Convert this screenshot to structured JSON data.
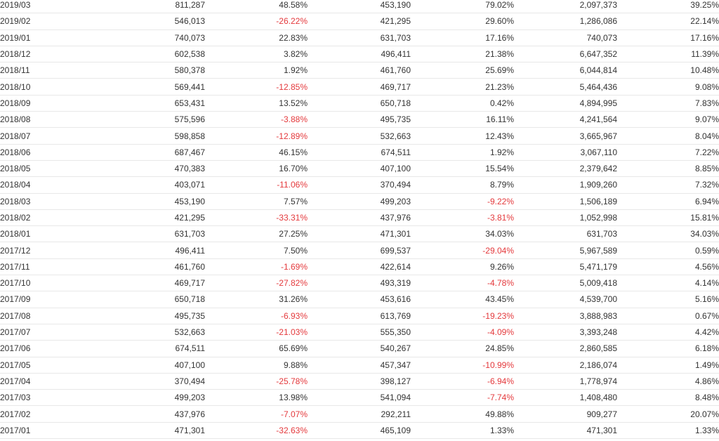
{
  "rows": [
    {
      "period": "2019/03",
      "v1": "811,287",
      "p1": "48.58%",
      "v2": "453,190",
      "p2": "79.02%",
      "v3": "2,097,373",
      "p3": "39.25%"
    },
    {
      "period": "2019/02",
      "v1": "546,013",
      "p1": "-26.22%",
      "v2": "421,295",
      "p2": "29.60%",
      "v3": "1,286,086",
      "p3": "22.14%"
    },
    {
      "period": "2019/01",
      "v1": "740,073",
      "p1": "22.83%",
      "v2": "631,703",
      "p2": "17.16%",
      "v3": "740,073",
      "p3": "17.16%"
    },
    {
      "period": "2018/12",
      "v1": "602,538",
      "p1": "3.82%",
      "v2": "496,411",
      "p2": "21.38%",
      "v3": "6,647,352",
      "p3": "11.39%"
    },
    {
      "period": "2018/11",
      "v1": "580,378",
      "p1": "1.92%",
      "v2": "461,760",
      "p2": "25.69%",
      "v3": "6,044,814",
      "p3": "10.48%"
    },
    {
      "period": "2018/10",
      "v1": "569,441",
      "p1": "-12.85%",
      "v2": "469,717",
      "p2": "21.23%",
      "v3": "5,464,436",
      "p3": "9.08%"
    },
    {
      "period": "2018/09",
      "v1": "653,431",
      "p1": "13.52%",
      "v2": "650,718",
      "p2": "0.42%",
      "v3": "4,894,995",
      "p3": "7.83%"
    },
    {
      "period": "2018/08",
      "v1": "575,596",
      "p1": "-3.88%",
      "v2": "495,735",
      "p2": "16.11%",
      "v3": "4,241,564",
      "p3": "9.07%"
    },
    {
      "period": "2018/07",
      "v1": "598,858",
      "p1": "-12.89%",
      "v2": "532,663",
      "p2": "12.43%",
      "v3": "3,665,967",
      "p3": "8.04%"
    },
    {
      "period": "2018/06",
      "v1": "687,467",
      "p1": "46.15%",
      "v2": "674,511",
      "p2": "1.92%",
      "v3": "3,067,110",
      "p3": "7.22%"
    },
    {
      "period": "2018/05",
      "v1": "470,383",
      "p1": "16.70%",
      "v2": "407,100",
      "p2": "15.54%",
      "v3": "2,379,642",
      "p3": "8.85%"
    },
    {
      "period": "2018/04",
      "v1": "403,071",
      "p1": "-11.06%",
      "v2": "370,494",
      "p2": "8.79%",
      "v3": "1,909,260",
      "p3": "7.32%"
    },
    {
      "period": "2018/03",
      "v1": "453,190",
      "p1": "7.57%",
      "v2": "499,203",
      "p2": "-9.22%",
      "v3": "1,506,189",
      "p3": "6.94%"
    },
    {
      "period": "2018/02",
      "v1": "421,295",
      "p1": "-33.31%",
      "v2": "437,976",
      "p2": "-3.81%",
      "v3": "1,052,998",
      "p3": "15.81%"
    },
    {
      "period": "2018/01",
      "v1": "631,703",
      "p1": "27.25%",
      "v2": "471,301",
      "p2": "34.03%",
      "v3": "631,703",
      "p3": "34.03%"
    },
    {
      "period": "2017/12",
      "v1": "496,411",
      "p1": "7.50%",
      "v2": "699,537",
      "p2": "-29.04%",
      "v3": "5,967,589",
      "p3": "0.59%"
    },
    {
      "period": "2017/11",
      "v1": "461,760",
      "p1": "-1.69%",
      "v2": "422,614",
      "p2": "9.26%",
      "v3": "5,471,179",
      "p3": "4.56%"
    },
    {
      "period": "2017/10",
      "v1": "469,717",
      "p1": "-27.82%",
      "v2": "493,319",
      "p2": "-4.78%",
      "v3": "5,009,418",
      "p3": "4.14%"
    },
    {
      "period": "2017/09",
      "v1": "650,718",
      "p1": "31.26%",
      "v2": "453,616",
      "p2": "43.45%",
      "v3": "4,539,700",
      "p3": "5.16%"
    },
    {
      "period": "2017/08",
      "v1": "495,735",
      "p1": "-6.93%",
      "v2": "613,769",
      "p2": "-19.23%",
      "v3": "3,888,983",
      "p3": "0.67%"
    },
    {
      "period": "2017/07",
      "v1": "532,663",
      "p1": "-21.03%",
      "v2": "555,350",
      "p2": "-4.09%",
      "v3": "3,393,248",
      "p3": "4.42%"
    },
    {
      "period": "2017/06",
      "v1": "674,511",
      "p1": "65.69%",
      "v2": "540,267",
      "p2": "24.85%",
      "v3": "2,860,585",
      "p3": "6.18%"
    },
    {
      "period": "2017/05",
      "v1": "407,100",
      "p1": "9.88%",
      "v2": "457,347",
      "p2": "-10.99%",
      "v3": "2,186,074",
      "p3": "1.49%"
    },
    {
      "period": "2017/04",
      "v1": "370,494",
      "p1": "-25.78%",
      "v2": "398,127",
      "p2": "-6.94%",
      "v3": "1,778,974",
      "p3": "4.86%"
    },
    {
      "period": "2017/03",
      "v1": "499,203",
      "p1": "13.98%",
      "v2": "541,094",
      "p2": "-7.74%",
      "v3": "1,408,480",
      "p3": "8.48%"
    },
    {
      "period": "2017/02",
      "v1": "437,976",
      "p1": "-7.07%",
      "v2": "292,211",
      "p2": "49.88%",
      "v3": "909,277",
      "p3": "20.07%"
    },
    {
      "period": "2017/01",
      "v1": "471,301",
      "p1": "-32.63%",
      "v2": "465,109",
      "p2": "1.33%",
      "v3": "471,301",
      "p3": "1.33%"
    }
  ],
  "colors": {
    "text": "#333333",
    "negative": "#e4393c",
    "divider": "#e8e8e8",
    "background": "#ffffff"
  }
}
